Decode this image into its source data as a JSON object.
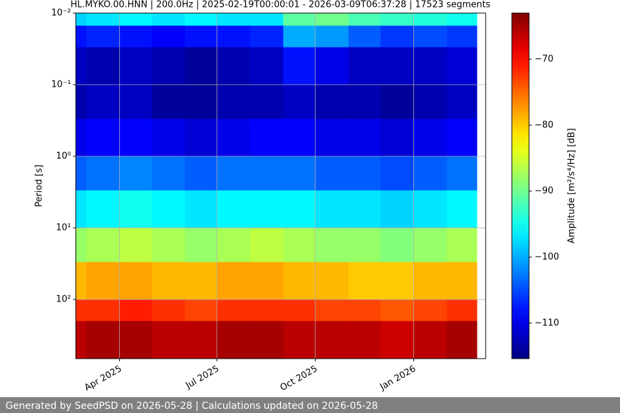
{
  "chart_data": {
    "type": "heatmap",
    "title": "HL.MYKO.00.HNN | 200.0Hz | 2025-02-19T00:00:01 - 2026-03-09T06:37:28 | 17523 segments",
    "ylabel": "Period [s]",
    "colorbar_label": "Amplitude [m²/s⁴/Hz] [dB]",
    "cmap": "jet",
    "log_y": true,
    "invert_y": true,
    "grid": true,
    "xlim": [
      "2025-02-19T00:00:01",
      "2026-03-09T06:37:28"
    ],
    "xticks": [
      {
        "value": "2025-04",
        "label": "Apr 2025"
      },
      {
        "value": "2025-07",
        "label": "Jul 2025"
      },
      {
        "value": "2025-10",
        "label": "Oct 2025"
      },
      {
        "value": "2026-01",
        "label": "Jan 2026"
      }
    ],
    "ylim": [
      0.01,
      670
    ],
    "yticks": [
      {
        "value": 0.01,
        "label": "10⁻²"
      },
      {
        "value": 0.1,
        "label": "10⁻¹"
      },
      {
        "value": 1,
        "label": "10⁰"
      },
      {
        "value": 10,
        "label": "10¹"
      },
      {
        "value": 100,
        "label": "10²"
      }
    ],
    "zlim": [
      -115.4,
      -63
    ],
    "zticks": [
      {
        "value": -110,
        "label": "−110"
      },
      {
        "value": -100,
        "label": "−100"
      },
      {
        "value": -90,
        "label": "−90"
      },
      {
        "value": -80,
        "label": "−80"
      },
      {
        "value": -70,
        "label": "−70"
      }
    ],
    "x_edges": [
      "2025-02",
      "2025-03",
      "2025-04",
      "2025-05",
      "2025-06",
      "2025-07",
      "2025-08",
      "2025-09",
      "2025-10",
      "2025-11",
      "2025-12",
      "2026-01",
      "2026-02",
      "2026-03"
    ],
    "y_edges": [
      0.01,
      0.015,
      0.03,
      0.1,
      0.3,
      1,
      3,
      10,
      30,
      100,
      200,
      670
    ],
    "z": [
      [
        -98,
        -97,
        -96,
        -97,
        -96,
        -97,
        -97,
        -91,
        -90,
        -92,
        -93,
        -94,
        -95
      ],
      [
        -108,
        -107,
        -108,
        -109,
        -108,
        -108,
        -107,
        -100,
        -101,
        -104,
        -106,
        -105,
        -106
      ],
      [
        -112,
        -113,
        -112,
        -113,
        -114,
        -113,
        -112,
        -108,
        -110,
        -112,
        -112,
        -112,
        -111
      ],
      [
        -113,
        -112,
        -112,
        -114,
        -114,
        -113,
        -113,
        -112,
        -113,
        -113,
        -114,
        -113,
        -112
      ],
      [
        -110,
        -109,
        -109,
        -110,
        -111,
        -110,
        -109,
        -109,
        -110,
        -110,
        -111,
        -110,
        -109
      ],
      [
        -104,
        -103,
        -102,
        -103,
        -104,
        -103,
        -103,
        -103,
        -104,
        -104,
        -105,
        -104,
        -103
      ],
      [
        -97,
        -96,
        -95,
        -96,
        -97,
        -96,
        -96,
        -96,
        -97,
        -97,
        -98,
        -97,
        -96
      ],
      [
        -88,
        -87,
        -86,
        -87,
        -88,
        -87,
        -86,
        -87,
        -88,
        -88,
        -89,
        -88,
        -87
      ],
      [
        -79,
        -78,
        -78,
        -79,
        -79,
        -78,
        -78,
        -79,
        -79,
        -80,
        -80,
        -79,
        -79
      ],
      [
        -72,
        -72,
        -71,
        -72,
        -73,
        -72,
        -72,
        -72,
        -73,
        -73,
        -74,
        -73,
        -72
      ],
      [
        -66,
        -65,
        -65,
        -66,
        -66,
        -65,
        -65,
        -66,
        -66,
        -66,
        -67,
        -66,
        -65
      ]
    ]
  },
  "footer": "Generated by SeedPSD on 2026-05-28 | Calculations updated on 2026-05-28"
}
